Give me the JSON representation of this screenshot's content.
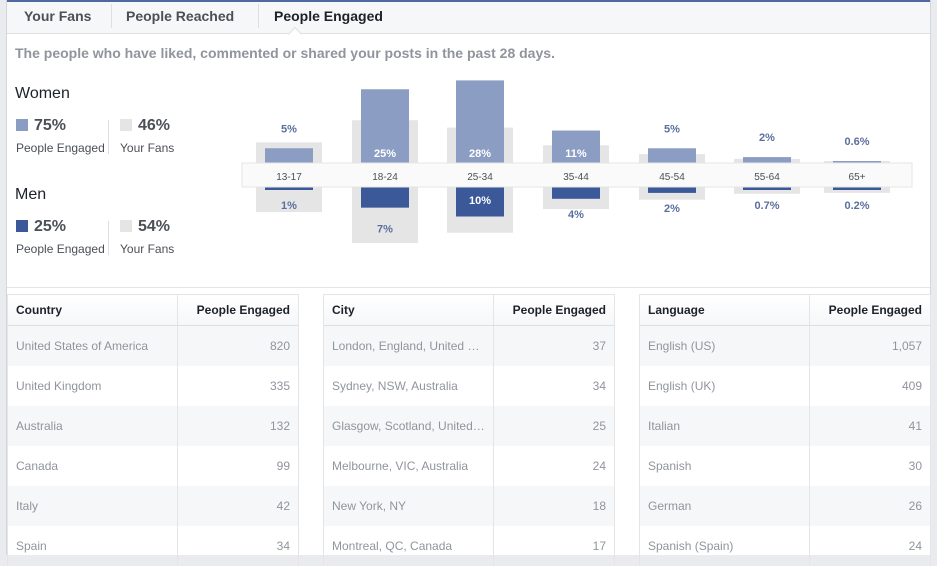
{
  "tabs": [
    "Your Fans",
    "People Reached",
    "People Engaged"
  ],
  "description": "The people who have liked, commented or shared your posts in the past 28 days.",
  "summary": {
    "women": {
      "label": "Women",
      "engaged": "75%",
      "fans": "46%"
    },
    "men": {
      "label": "Men",
      "engaged": "25%",
      "fans": "54%"
    },
    "engaged_label": "People Engaged",
    "fans_label": "Your Fans"
  },
  "colors": {
    "women": "#8b9dc3",
    "men": "#3b5998",
    "fans": "#e5e5e5",
    "label": "#5b6f9e"
  },
  "chart_data": {
    "type": "bar",
    "categories": [
      "13-17",
      "18-24",
      "25-34",
      "35-44",
      "45-54",
      "55-64",
      "65+"
    ],
    "series": [
      {
        "name": "Women People Engaged",
        "values": [
          5,
          25,
          28,
          11,
          5,
          2,
          0.6
        ],
        "labels": [
          "5%",
          "25%",
          "28%",
          "11%",
          "5%",
          "2%",
          "0.6%"
        ]
      },
      {
        "name": "Men People Engaged",
        "values": [
          1,
          7,
          10,
          4,
          2,
          0.7,
          0.2
        ],
        "labels": [
          "1%",
          "7%",
          "10%",
          "4%",
          "2%",
          "0.7%",
          "0.2%"
        ]
      },
      {
        "name": "Women Your Fans",
        "values": [
          7,
          14.5,
          12,
          6,
          3,
          1.4,
          0.5
        ]
      },
      {
        "name": "Men Your Fans",
        "values": [
          8.5,
          19,
          15.5,
          7.5,
          4.3,
          2.3,
          2
        ]
      }
    ]
  },
  "tables": [
    {
      "headers": [
        "Country",
        "People Engaged"
      ],
      "rows": [
        [
          "United States of America",
          "820"
        ],
        [
          "United Kingdom",
          "335"
        ],
        [
          "Australia",
          "132"
        ],
        [
          "Canada",
          "99"
        ],
        [
          "Italy",
          "42"
        ],
        [
          "Spain",
          "34"
        ]
      ]
    },
    {
      "headers": [
        "City",
        "People Engaged"
      ],
      "rows": [
        [
          "London, England, United Kingdom",
          "37"
        ],
        [
          "Sydney, NSW, Australia",
          "34"
        ],
        [
          "Glasgow, Scotland, United Kingdom",
          "25"
        ],
        [
          "Melbourne, VIC, Australia",
          "24"
        ],
        [
          "New York, NY",
          "18"
        ],
        [
          "Montreal, QC, Canada",
          "17"
        ]
      ]
    },
    {
      "headers": [
        "Language",
        "People Engaged"
      ],
      "rows": [
        [
          "English (US)",
          "1,057"
        ],
        [
          "English (UK)",
          "409"
        ],
        [
          "Italian",
          "41"
        ],
        [
          "Spanish",
          "30"
        ],
        [
          "German",
          "26"
        ],
        [
          "Spanish (Spain)",
          "24"
        ]
      ]
    }
  ]
}
